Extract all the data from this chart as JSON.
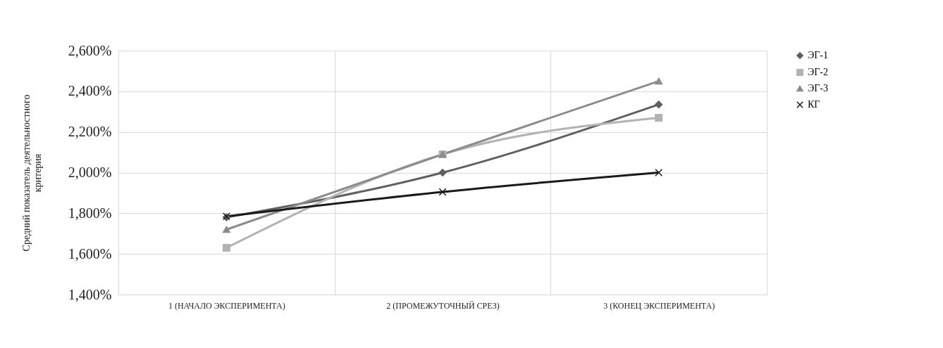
{
  "chart_data": {
    "type": "line",
    "ylabel": "Средний показатель деятельностного критерия",
    "categories": [
      "1 (НАЧАЛО ЭКСПЕРИМЕНТА)",
      "2 (ПРОМЕЖУТОЧНЫЙ СРЕЗ)",
      "3 (КОНЕЦ ЭКСПЕРИМЕНТА)"
    ],
    "series": [
      {
        "name": "ЭГ-1",
        "color": "#5f5f5f",
        "marker": "diamond",
        "values": [
          1780,
          2000,
          2335
        ]
      },
      {
        "name": "ЭГ-2",
        "color": "#b3b3b3",
        "marker": "square",
        "values": [
          1630,
          2090,
          2270
        ]
      },
      {
        "name": "ЭГ-3",
        "color": "#8c8c8c",
        "marker": "triangle",
        "values": [
          1720,
          2090,
          2450
        ]
      },
      {
        "name": "КГ",
        "color": "#1a1a1a",
        "marker": "cross",
        "values": [
          1785,
          1905,
          2000
        ]
      }
    ],
    "ylim": [
      1400,
      2600
    ],
    "yticks": [
      {
        "value": 1400,
        "label": "1,400%"
      },
      {
        "value": 1600,
        "label": "1,600%"
      },
      {
        "value": 1800,
        "label": "1,800%"
      },
      {
        "value": 2000,
        "label": "2,000%"
      },
      {
        "value": 2200,
        "label": "2,200%"
      },
      {
        "value": 2400,
        "label": "2,400%"
      },
      {
        "value": 2600,
        "label": "2,600%"
      }
    ],
    "grid": true,
    "legend": "right",
    "line_style": "solid"
  }
}
